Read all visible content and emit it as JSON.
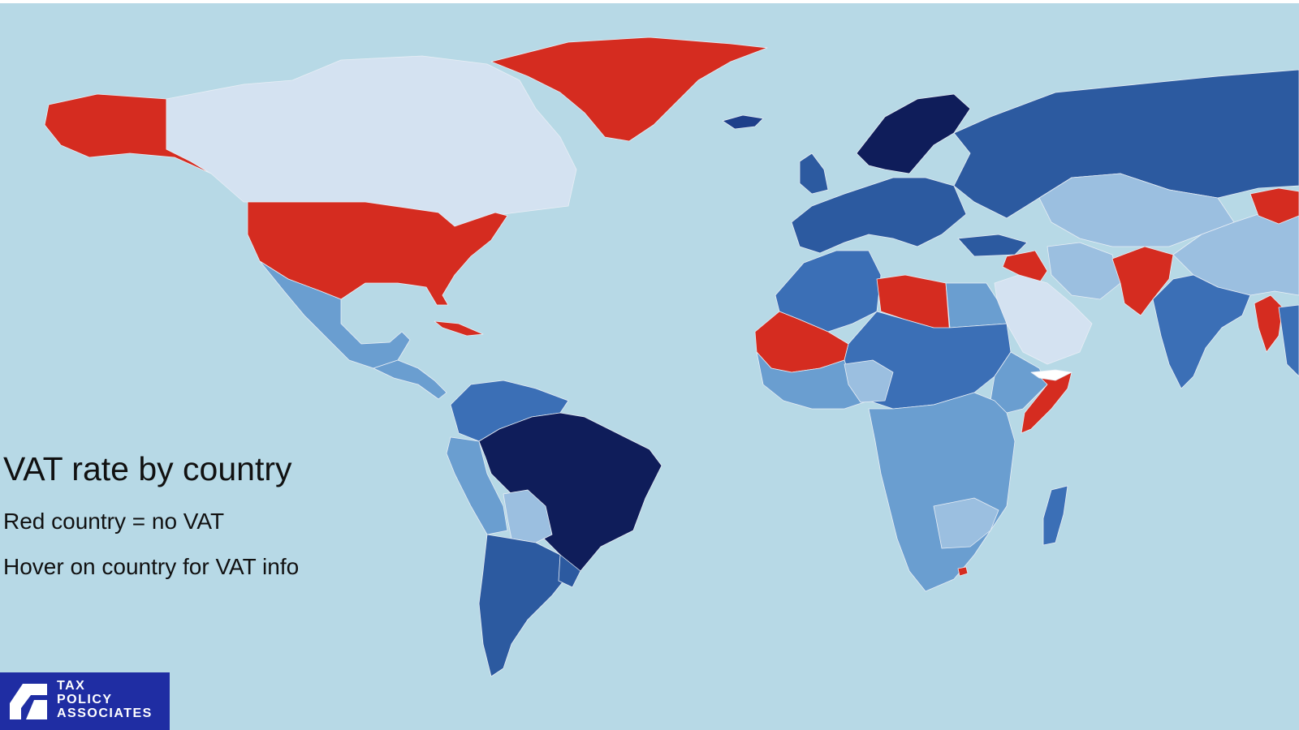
{
  "map": {
    "title": "VAT rate by country",
    "legend_lines": [
      "Red country = no VAT",
      "Hover on country for VAT info"
    ],
    "colors": {
      "ocean": "#b7d9e6",
      "no_vat": "#d52c20",
      "vat_very_high": "#0f1d5a",
      "vat_high": "#1e3f8a",
      "vat_mid_high": "#2c5aa0",
      "vat_mid": "#3b6fb6",
      "vat_low": "#6a9ed0",
      "vat_lower": "#9bbfe0",
      "vat_lowest": "#d4e2f1",
      "unknown": "#ffffff"
    }
  },
  "brand": {
    "name_lines": [
      "TAX",
      "POLICY",
      "ASSOCIATES"
    ]
  }
}
